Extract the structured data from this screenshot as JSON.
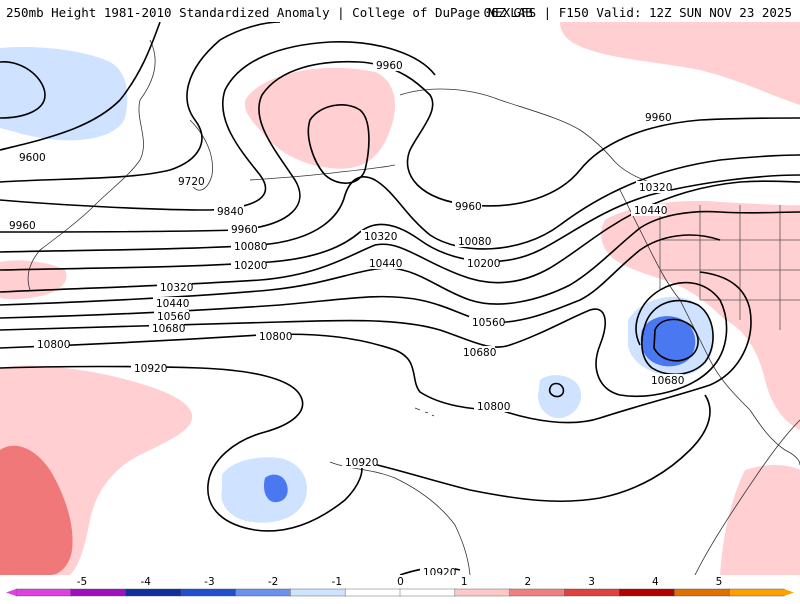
{
  "header": {
    "left_title": "250mb Height 1981-2010 Standardized Anomaly | College of DuPage NEXLAB",
    "right_title": "06Z GFS | F150 Valid: 12Z SUN NOV 23 2025"
  },
  "contours": {
    "c9600": "9600",
    "c9720": "9720",
    "c9840": "9840",
    "c9960a": "9960",
    "c9960b": "9960",
    "c9960c": "9960",
    "c9960d": "9960",
    "c9960e": "9960",
    "c10080a": "10080",
    "c10080b": "10080",
    "c10200a": "10200",
    "c10200b": "10200",
    "c10320a": "10320",
    "c10320b": "10320",
    "c10320c": "10320",
    "c10440a": "10440",
    "c10440b": "10440",
    "c10440c": "10440",
    "c10560a": "10560",
    "c10560b": "10560",
    "c10680a": "10680",
    "c10680b": "10680",
    "c10680c": "10680",
    "c10800a": "10800",
    "c10800b": "10800",
    "c10800c": "10800",
    "c10920a": "10920",
    "c10920b": "10920",
    "c10920c": "10920"
  },
  "colorbar": {
    "labels": [
      "-5",
      "-4",
      "-3",
      "-2",
      "-1",
      "0",
      "1",
      "2",
      "3",
      "4",
      "5"
    ],
    "colors": [
      "#e040e0",
      "#a010c0",
      "#1030a0",
      "#2050d0",
      "#6a90f0",
      "#cfe4ff",
      "#ffffff",
      "#ffffff",
      "#ffc8c8",
      "#f08080",
      "#e04040",
      "#b00000",
      "#e07000",
      "#ffa000"
    ]
  },
  "anomaly_colors": {
    "pos1": "#ffcfd2",
    "pos2": "#f07878",
    "neg1": "#cfe2ff",
    "neg2": "#4a78f0",
    "neg3": "#1f3fbf"
  }
}
